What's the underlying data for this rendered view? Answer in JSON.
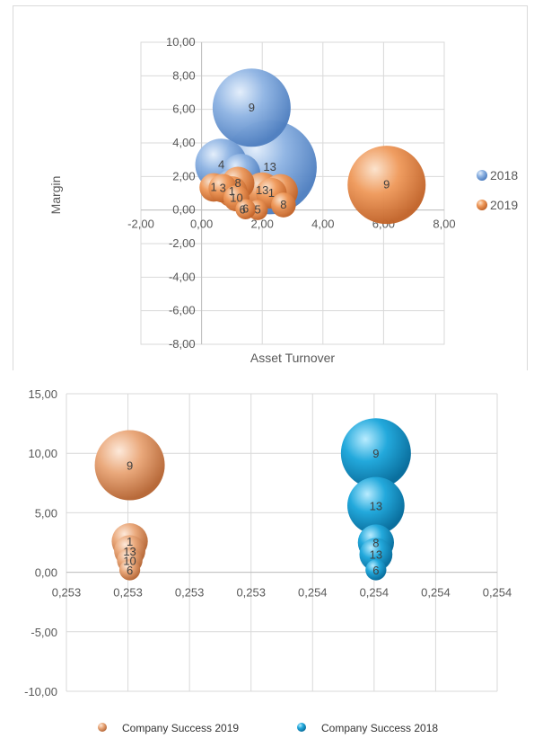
{
  "chart_data": [
    {
      "type": "bubble",
      "title": "",
      "xlabel": "Asset Turnover",
      "ylabel": "Margin",
      "xlim": [
        -2,
        8
      ],
      "ylim": [
        -8,
        10
      ],
      "xticks": [
        "-2,00",
        "0,00",
        "2,00",
        "4,00",
        "6,00",
        "8,00"
      ],
      "yticks": [
        "10,00",
        "8,00",
        "6,00",
        "4,00",
        "2,00",
        "0,00",
        "-2,00",
        "-4,00",
        "-6,00",
        "-8,00"
      ],
      "grid": true,
      "legend_position": "right",
      "colors": {
        "2018": "#6f9bd1",
        "2019": "#e8874a"
      },
      "series": [
        {
          "name": "2018",
          "points": [
            {
              "x": 1.65,
              "y": 6.1,
              "size": 9,
              "label": "9"
            },
            {
              "x": 0.65,
              "y": 2.7,
              "size": 4,
              "label": "4"
            },
            {
              "x": 2.25,
              "y": 2.55,
              "size": 13,
              "label": "13"
            },
            {
              "x": 1.3,
              "y": 2.2,
              "size": 2.2,
              "label": ""
            },
            {
              "x": 1.0,
              "y": 1.5,
              "size": 1.5,
              "label": ""
            }
          ]
        },
        {
          "name": "2019",
          "points": [
            {
              "x": 6.1,
              "y": 1.5,
              "size": 9,
              "label": "9"
            },
            {
              "x": 0.4,
              "y": 1.35,
              "size": 1.2,
              "label": "1"
            },
            {
              "x": 0.7,
              "y": 1.3,
              "size": 1.2,
              "label": "3"
            },
            {
              "x": 1.2,
              "y": 1.6,
              "size": 1.6,
              "label": "8"
            },
            {
              "x": 1.0,
              "y": 1.1,
              "size": 1.4,
              "label": "1"
            },
            {
              "x": 1.15,
              "y": 0.7,
              "size": 1.0,
              "label": "10"
            },
            {
              "x": 2.0,
              "y": 1.15,
              "size": 2.0,
              "label": "13"
            },
            {
              "x": 2.3,
              "y": 1.0,
              "size": 1.4,
              "label": "1"
            },
            {
              "x": 2.6,
              "y": 1.1,
              "size": 1.8,
              "label": ""
            },
            {
              "x": 2.7,
              "y": 0.3,
              "size": 0.9,
              "label": "8"
            },
            {
              "x": 1.85,
              "y": 0.0,
              "size": 0.6,
              "label": "5"
            },
            {
              "x": 1.45,
              "y": 0.05,
              "size": 0.6,
              "label": "6"
            }
          ]
        }
      ],
      "free_labels": [
        {
          "x": 1.35,
          "y": 0.0,
          "label": "6"
        }
      ]
    },
    {
      "type": "bubble",
      "title": "",
      "xlabel": "",
      "ylabel": "",
      "xlim": [
        0.2525,
        0.2545
      ],
      "ylim": [
        -10,
        15
      ],
      "xticks": [
        "0,253",
        "0,253",
        "0,253",
        "0,253",
        "0,254",
        "0,254",
        "0,254",
        "0,254"
      ],
      "yticks": [
        "15,00",
        "10,00",
        "5,00",
        "0,00",
        "-5,00",
        "-10,00"
      ],
      "grid": true,
      "legend_position": "bottom",
      "colors": {
        "Company Success 2019": "#e8a478",
        "Company Success 2018": "#1fa3d6"
      },
      "series": [
        {
          "name": "Company Success 2019",
          "points": [
            {
              "xi": 1,
              "y": 9.0,
              "size": 9,
              "label": "9"
            },
            {
              "xi": 1,
              "y": 2.6,
              "size": 2.4,
              "label": "1"
            },
            {
              "xi": 1,
              "y": 1.8,
              "size": 1.8,
              "label": "13"
            },
            {
              "xi": 1,
              "y": 1.0,
              "size": 1.2,
              "label": "10"
            },
            {
              "xi": 1,
              "y": 0.2,
              "size": 0.8,
              "label": "6"
            }
          ]
        },
        {
          "name": "Company Success 2018",
          "points": [
            {
              "xi": 5,
              "y": 10.0,
              "size": 9,
              "label": "9"
            },
            {
              "xi": 5,
              "y": 5.6,
              "size": 6,
              "label": "13"
            },
            {
              "xi": 5,
              "y": 2.5,
              "size": 2.4,
              "label": "8"
            },
            {
              "xi": 5,
              "y": 1.5,
              "size": 2.0,
              "label": "13"
            },
            {
              "xi": 5,
              "y": 0.2,
              "size": 0.8,
              "label": "6"
            }
          ]
        }
      ]
    }
  ]
}
